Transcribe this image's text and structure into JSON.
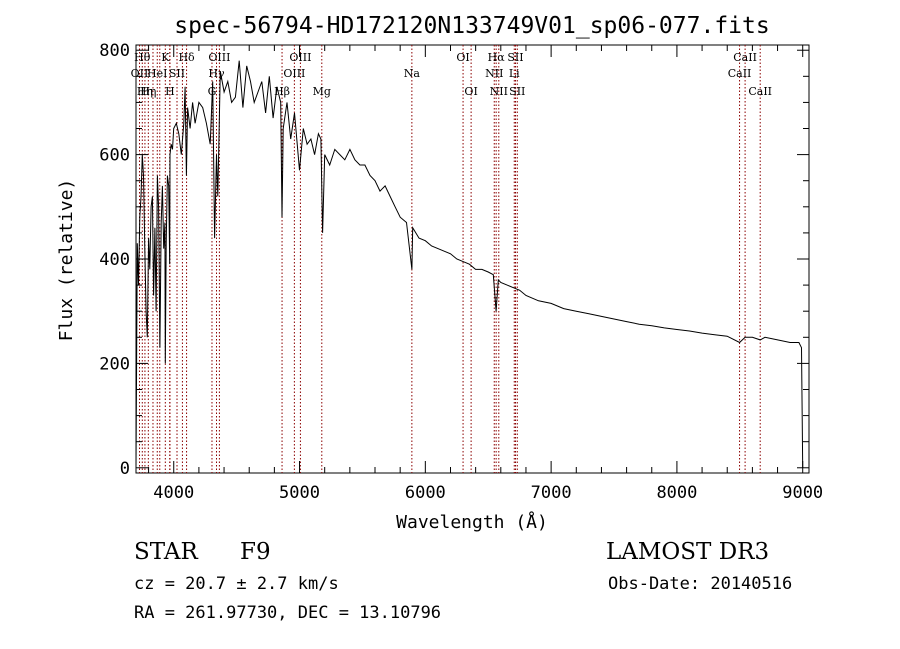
{
  "chart_data": {
    "type": "line",
    "title": "spec-56794-HD172120N133749V01_sp06-077.fits",
    "xlabel": "Wavelength (Å)",
    "ylabel": "Flux (relative)",
    "xlim": [
      3700,
      9050
    ],
    "ylim": [
      -10,
      810
    ],
    "xticks": [
      4000,
      5000,
      6000,
      7000,
      8000,
      9000
    ],
    "yticks": [
      0,
      200,
      400,
      600,
      800
    ],
    "grid": false,
    "series": [
      {
        "x": [
          3700,
          3710,
          3720,
          3730,
          3740,
          3750,
          3760,
          3770,
          3780,
          3790,
          3800,
          3810,
          3820,
          3830,
          3840,
          3850,
          3860,
          3870,
          3880,
          3890,
          3900,
          3910,
          3920,
          3930,
          3933,
          3940,
          3950,
          3960,
          3968,
          3970,
          3980,
          3990,
          4000,
          4020,
          4040,
          4060,
          4080,
          4090,
          4101,
          4110,
          4130,
          4150,
          4170,
          4200,
          4230,
          4260,
          4290,
          4310,
          4325,
          4340,
          4350,
          4370,
          4400,
          4430,
          4460,
          4490,
          4520,
          4550,
          4580,
          4610,
          4640,
          4670,
          4700,
          4730,
          4760,
          4790,
          4820,
          4850,
          4861,
          4870,
          4900,
          4930,
          4960,
          5000,
          5030,
          5060,
          5090,
          5120,
          5150,
          5170,
          5183,
          5200,
          5240,
          5280,
          5320,
          5360,
          5400,
          5440,
          5480,
          5520,
          5560,
          5600,
          5640,
          5680,
          5720,
          5760,
          5800,
          5850,
          5893,
          5900,
          5950,
          6000,
          6050,
          6100,
          6150,
          6200,
          6250,
          6300,
          6350,
          6400,
          6450,
          6500,
          6540,
          6563,
          6580,
          6600,
          6650,
          6700,
          6750,
          6800,
          6900,
          7000,
          7100,
          7200,
          7300,
          7400,
          7500,
          7600,
          7700,
          7800,
          7900,
          8000,
          8100,
          8200,
          8300,
          8400,
          8498,
          8542,
          8600,
          8662,
          8700,
          8800,
          8900,
          8970,
          8990,
          9000
        ],
        "values": [
          0,
          430,
          350,
          480,
          520,
          600,
          560,
          420,
          300,
          250,
          440,
          380,
          500,
          520,
          330,
          460,
          300,
          560,
          500,
          230,
          470,
          540,
          420,
          470,
          200,
          430,
          560,
          540,
          390,
          600,
          620,
          610,
          650,
          660,
          640,
          600,
          660,
          730,
          560,
          690,
          650,
          700,
          660,
          700,
          690,
          660,
          620,
          740,
          440,
          600,
          520,
          760,
          720,
          740,
          700,
          710,
          780,
          690,
          770,
          740,
          700,
          720,
          740,
          680,
          750,
          670,
          730,
          700,
          480,
          650,
          700,
          630,
          680,
          570,
          650,
          620,
          630,
          600,
          640,
          630,
          450,
          600,
          580,
          610,
          600,
          590,
          610,
          590,
          580,
          580,
          560,
          550,
          530,
          540,
          520,
          500,
          480,
          470,
          380,
          460,
          440,
          435,
          425,
          420,
          415,
          410,
          400,
          395,
          390,
          380,
          380,
          375,
          370,
          300,
          360,
          355,
          350,
          345,
          340,
          330,
          320,
          315,
          305,
          300,
          295,
          290,
          285,
          280,
          275,
          272,
          268,
          265,
          262,
          258,
          255,
          252,
          240,
          250,
          250,
          245,
          250,
          245,
          240,
          240,
          230,
          0
        ]
      }
    ],
    "lines": [
      {
        "x": 3728,
        "label": "OII",
        "row": 2
      },
      {
        "x": 3750,
        "label": "Hθ",
        "row": 1
      },
      {
        "x": 3771,
        "label": "Hη",
        "row": 3
      },
      {
        "x": 3798,
        "label": "Hη",
        "row": 3
      },
      {
        "x": 3835,
        "label": "",
        "row": 0
      },
      {
        "x": 3869,
        "label": "HeI",
        "row": 2
      },
      {
        "x": 3889,
        "label": "",
        "row": 0
      },
      {
        "x": 3933,
        "label": "K",
        "row": 1
      },
      {
        "x": 3968,
        "label": "",
        "row": 0
      },
      {
        "x": 3970,
        "label": "H",
        "row": 3
      },
      {
        "x": 4026,
        "label": "SII",
        "row": 2
      },
      {
        "x": 4069,
        "label": "",
        "row": 0
      },
      {
        "x": 4102,
        "label": "Hδ",
        "row": 1
      },
      {
        "x": 4304,
        "label": "G",
        "row": 3
      },
      {
        "x": 4340,
        "label": "Hγ",
        "row": 2
      },
      {
        "x": 4363,
        "label": "OIII",
        "row": 1
      },
      {
        "x": 4861,
        "label": "Hβ",
        "row": 3
      },
      {
        "x": 4959,
        "label": "OIII",
        "row": 2
      },
      {
        "x": 5007,
        "label": "OIII",
        "row": 1
      },
      {
        "x": 5177,
        "label": "Mg",
        "row": 3
      },
      {
        "x": 5893,
        "label": "Na",
        "row": 2
      },
      {
        "x": 6300,
        "label": "OI",
        "row": 1
      },
      {
        "x": 6364,
        "label": "OI",
        "row": 3
      },
      {
        "x": 6548,
        "label": "NII",
        "row": 2
      },
      {
        "x": 6563,
        "label": "Hα",
        "row": 1
      },
      {
        "x": 6584,
        "label": "NII",
        "row": 3
      },
      {
        "x": 6707,
        "label": "Li",
        "row": 2
      },
      {
        "x": 6717,
        "label": "SII",
        "row": 1
      },
      {
        "x": 6731,
        "label": "SII",
        "row": 3
      },
      {
        "x": 8498,
        "label": "CaII",
        "row": 2
      },
      {
        "x": 8542,
        "label": "CaII",
        "row": 1
      },
      {
        "x": 8662,
        "label": "CaII",
        "row": 3
      }
    ],
    "line_color": "#8b0000",
    "spectrum_color": "#000000"
  },
  "info": {
    "class": "STAR",
    "subclass": "F9",
    "survey": "LAMOST DR3",
    "cz": "cz = 20.7 ± 2.7 km/s",
    "obsdate": "Obs-Date: 20140516",
    "radec": "RA = 261.97730, DEC =  13.10796"
  }
}
